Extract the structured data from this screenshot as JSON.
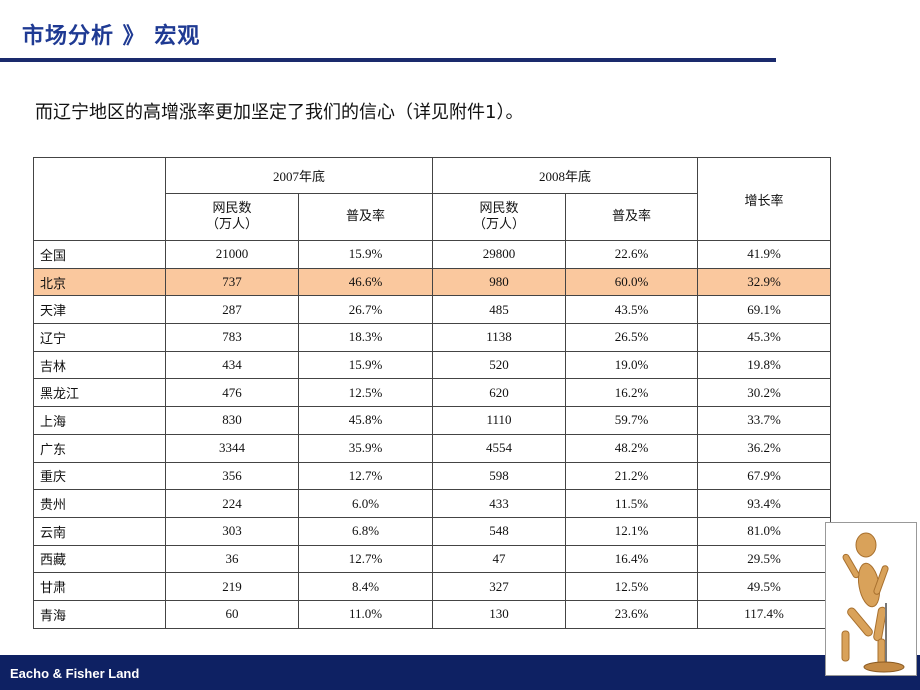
{
  "header": {
    "title": "市场分析 》 宏观"
  },
  "subtitle": "而辽宁地区的高增涨率更加坚定了我们的信心（详见附件1）。",
  "table": {
    "groups": [
      "2007年底",
      "2008年底"
    ],
    "growth_header": "增长率",
    "subheaders": [
      "网民数\n（万人）",
      "普及率",
      "网民数\n（万人）",
      "普及率"
    ],
    "rows": [
      [
        "全国",
        "21000",
        "15.9%",
        "29800",
        "22.6%",
        "41.9%"
      ],
      [
        "北京",
        "737",
        "46.6%",
        "980",
        "60.0%",
        "32.9%"
      ],
      [
        "天津",
        "287",
        "26.7%",
        "485",
        "43.5%",
        "69.1%"
      ],
      [
        "辽宁",
        "783",
        "18.3%",
        "1138",
        "26.5%",
        "45.3%"
      ],
      [
        "吉林",
        "434",
        "15.9%",
        "520",
        "19.0%",
        "19.8%"
      ],
      [
        "黑龙江",
        "476",
        "12.5%",
        "620",
        "16.2%",
        "30.2%"
      ],
      [
        "上海",
        "830",
        "45.8%",
        "1110",
        "59.7%",
        "33.7%"
      ],
      [
        "广东",
        "3344",
        "35.9%",
        "4554",
        "48.2%",
        "36.2%"
      ],
      [
        "重庆",
        "356",
        "12.7%",
        "598",
        "21.2%",
        "67.9%"
      ],
      [
        "贵州",
        "224",
        "6.0%",
        "433",
        "11.5%",
        "93.4%"
      ],
      [
        "云南",
        "303",
        "6.8%",
        "548",
        "12.1%",
        "81.0%"
      ],
      [
        "西藏",
        "36",
        "12.7%",
        "47",
        "16.4%",
        "29.5%"
      ],
      [
        "甘肃",
        "219",
        "8.4%",
        "327",
        "12.5%",
        "49.5%"
      ],
      [
        "青海",
        "60",
        "11.0%",
        "130",
        "23.6%",
        "117.4%"
      ]
    ]
  },
  "footer": "Eacho & Fisher Land"
}
